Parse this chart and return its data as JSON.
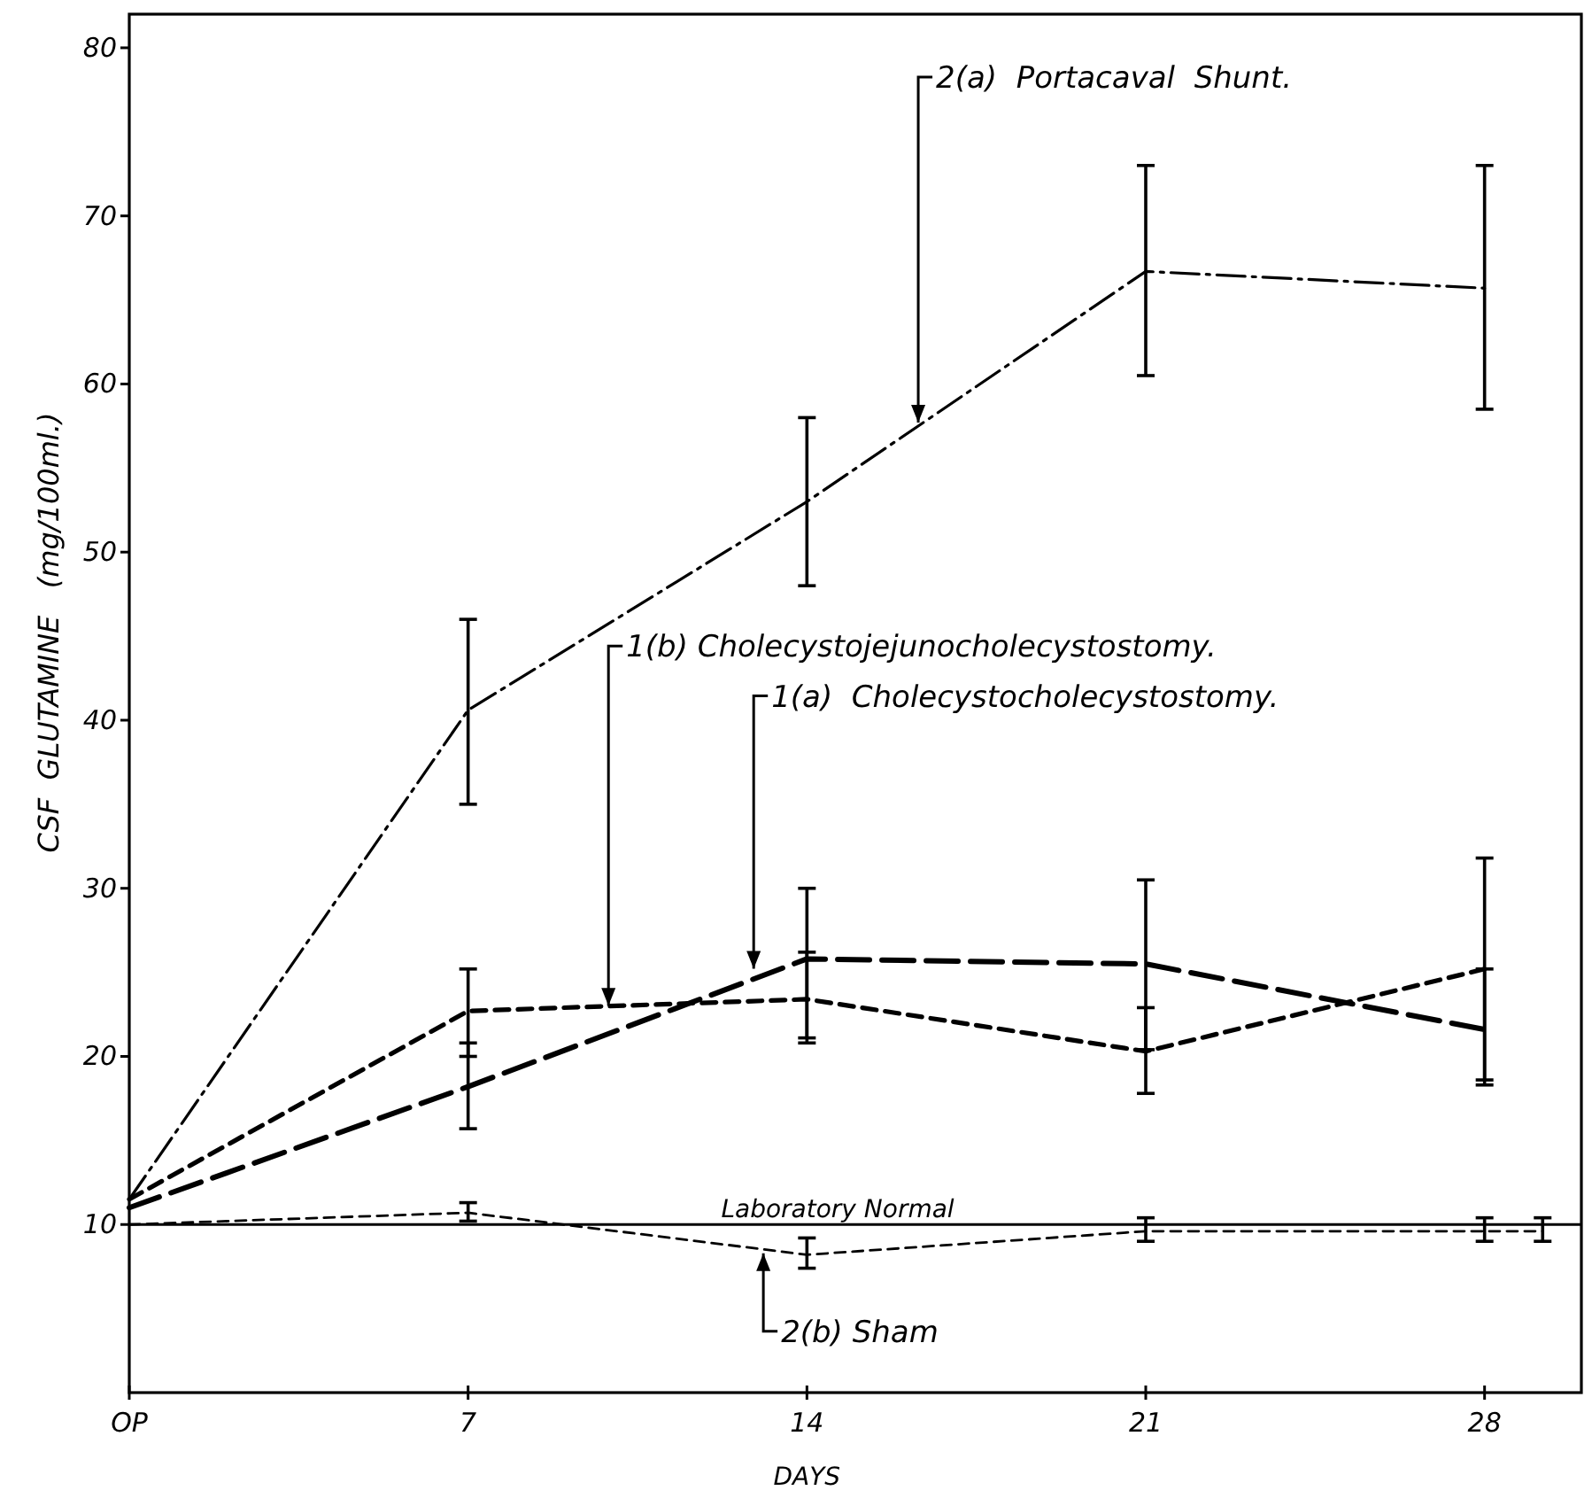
{
  "chart_data": {
    "type": "line",
    "xlabel": "DAYS",
    "ylabel": "CSF  GLUTAMINE   (mg/100ml.)",
    "xlim": [
      0,
      30
    ],
    "ylim": [
      0,
      82
    ],
    "xticks": [
      {
        "value": 0,
        "label": "OP"
      },
      7,
      14,
      21,
      28
    ],
    "yticks": [
      10,
      20,
      30,
      40,
      50,
      60,
      70,
      80
    ],
    "grid": false,
    "marker": "none",
    "line_style": "dashed",
    "series": [
      {
        "color": "#000000",
        "x": [
          0,
          7,
          14,
          21,
          28
        ],
        "values": [
          11.5,
          40.6,
          53,
          66.7,
          65.7
        ],
        "errors": [
          null,
          [
            35,
            46
          ],
          [
            48,
            58
          ],
          [
            60.5,
            73
          ],
          [
            58.5,
            73
          ]
        ]
      },
      {
        "color": "#000000",
        "x": [
          0,
          7,
          14,
          21,
          28
        ],
        "values": [
          11.5,
          22.7,
          23.4,
          20.3,
          25.2
        ],
        "errors": [
          null,
          [
            20,
            25.2
          ],
          [
            20.8,
            26.2
          ],
          [
            17.8,
            22.9
          ],
          [
            18.3,
            31.8
          ]
        ]
      },
      {
        "color": "#000000",
        "x": [
          0,
          7,
          14,
          21,
          28
        ],
        "values": [
          11,
          18.2,
          25.8,
          25.5,
          21.6
        ],
        "errors": [
          null,
          [
            15.7,
            20.8
          ],
          [
            21.1,
            30
          ],
          [
            20.4,
            30.5
          ],
          [
            18.6,
            25.2
          ]
        ]
      },
      {
        "color": "#000000",
        "x": [
          0,
          7,
          14,
          21,
          28,
          29.2
        ],
        "values": [
          10,
          10.7,
          8.2,
          9.6,
          9.6,
          9.6
        ],
        "errors": [
          null,
          [
            10.2,
            11.3
          ],
          [
            7.4,
            9.2
          ],
          [
            9,
            10.4
          ],
          [
            9,
            10.4
          ],
          [
            9,
            10.4
          ]
        ]
      }
    ],
    "ref_lines": [
      {
        "axis": "y",
        "value": 10,
        "label": "Laboratory Normal",
        "color": "#000000",
        "line_style": "solid"
      }
    ],
    "annotations": [
      {
        "text": "2(a)  Portacaval  Shunt.",
        "x": 16.3,
        "y": 57.5
      },
      {
        "text": "1(b) Cholecystojejunocholecystostomy.",
        "x": 9.9,
        "y": 22.8
      },
      {
        "text": "1(a)  Cholecystocholecystostomy.",
        "x": 12.9,
        "y": 25
      },
      {
        "text": "2(b) Sham",
        "x": 13.1,
        "y": 8.5
      }
    ]
  }
}
